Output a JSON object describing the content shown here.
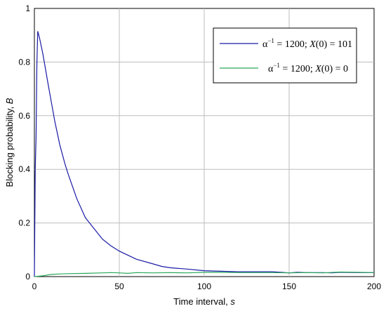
{
  "chart_data": {
    "type": "line",
    "xlabel": "Time interval, ",
    "xlabel_var": "s",
    "ylabel": "Blocking probability, ",
    "ylabel_var": "B",
    "xlim": [
      0,
      200
    ],
    "ylim": [
      0,
      1
    ],
    "xticks": [
      "0",
      "50",
      "100",
      "150",
      "200"
    ],
    "yticks": [
      "0",
      "0.2",
      "0.4",
      "0.6",
      "0.8",
      "1"
    ],
    "grid": true,
    "legend_position": "top-right",
    "series": [
      {
        "name": "α⁻¹ = 1200; X(0) = 101",
        "color": "#1a1aa6",
        "x": [
          0,
          0.5,
          1,
          1.5,
          2,
          3,
          5,
          8,
          10,
          12,
          15,
          18,
          20,
          25,
          30,
          35,
          40,
          45,
          50,
          55,
          60,
          70,
          75,
          80,
          90,
          100,
          110,
          120,
          130,
          140,
          145,
          150,
          155,
          160,
          170,
          175,
          180,
          190,
          200
        ],
        "y": [
          0,
          0.4,
          0.52,
          0.8,
          0.915,
          0.89,
          0.83,
          0.72,
          0.65,
          0.58,
          0.49,
          0.42,
          0.38,
          0.29,
          0.22,
          0.18,
          0.14,
          0.115,
          0.095,
          0.08,
          0.065,
          0.047,
          0.038,
          0.033,
          0.028,
          0.022,
          0.02,
          0.018,
          0.018,
          0.018,
          0.016,
          0.014,
          0.016,
          0.015,
          0.015,
          0.014,
          0.016,
          0.015,
          0.015
        ]
      },
      {
        "name": "α⁻¹ = 1200; X(0) = 0",
        "color": "#2aa85a",
        "x": [
          0,
          5,
          10,
          15,
          20,
          30,
          40,
          45,
          50,
          55,
          60,
          70,
          80,
          90,
          100,
          110,
          120,
          130,
          140,
          150,
          160,
          170,
          180,
          190,
          200
        ],
        "y": [
          0,
          0.003,
          0.008,
          0.01,
          0.011,
          0.012,
          0.014,
          0.015,
          0.014,
          0.012,
          0.015,
          0.014,
          0.015,
          0.014,
          0.016,
          0.016,
          0.015,
          0.015,
          0.015,
          0.014,
          0.015,
          0.014,
          0.017,
          0.016,
          0.015
        ]
      }
    ],
    "legend_entries": [
      {
        "sym": "α",
        "sup": "−1",
        "rest": " = 1200; ",
        "var": "X",
        "tail": "(0) = 101"
      },
      {
        "sym": "α",
        "sup": "−1",
        "rest": " = 1200; ",
        "var": "X",
        "tail": "(0) = 0"
      }
    ]
  }
}
